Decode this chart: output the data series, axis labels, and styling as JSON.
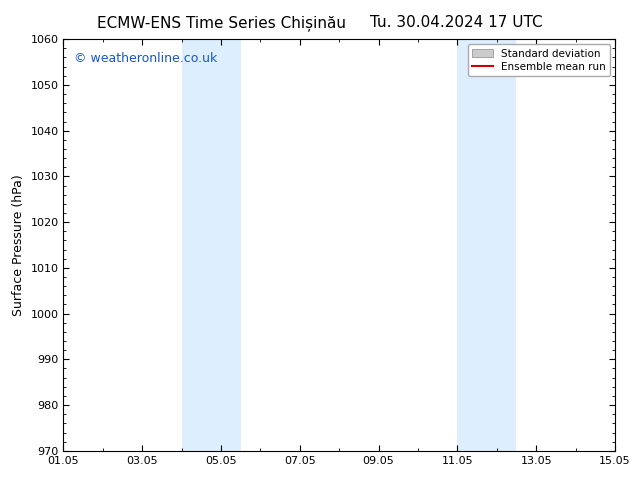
{
  "title_left": "ECMW-ENS Time Series Chișinău",
  "title_right": "Tu. 30.04.2024 17 UTC",
  "ylabel": "Surface Pressure (hPa)",
  "xlabel": "",
  "ylim": [
    970,
    1060
  ],
  "yticks": [
    970,
    980,
    990,
    1000,
    1010,
    1020,
    1030,
    1040,
    1050,
    1060
  ],
  "xlim": [
    0,
    14
  ],
  "xtick_labels": [
    "01.05",
    "03.05",
    "05.05",
    "07.05",
    "09.05",
    "11.05",
    "13.05",
    "15.05"
  ],
  "xtick_positions": [
    0,
    2,
    4,
    6,
    8,
    10,
    12,
    14
  ],
  "shaded_bands": [
    {
      "x_start": 3.0,
      "x_end": 4.5
    },
    {
      "x_start": 10.0,
      "x_end": 11.5
    }
  ],
  "shade_color": "#ddeeff",
  "background_color": "#ffffff",
  "watermark_text": "© weatheronline.co.uk",
  "watermark_color": "#1a55cc",
  "legend_items": [
    {
      "label": "Standard deviation",
      "color": "#cccccc",
      "type": "patch"
    },
    {
      "label": "Ensemble mean run",
      "color": "#cc0000",
      "type": "line"
    }
  ],
  "title_fontsize": 11,
  "axis_label_fontsize": 9,
  "tick_fontsize": 8,
  "watermark_fontsize": 9
}
